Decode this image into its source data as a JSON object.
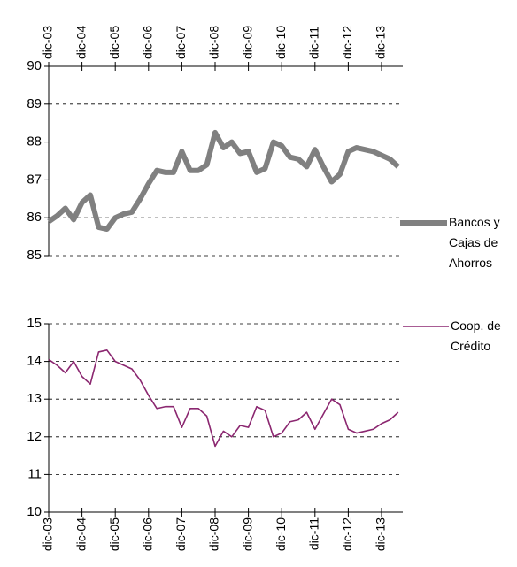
{
  "chart_data": [
    {
      "type": "line",
      "categories": [
        "dic-03",
        null,
        null,
        null,
        "dic-04",
        null,
        null,
        null,
        "dic-05",
        null,
        null,
        null,
        "dic-06",
        null,
        null,
        null,
        "dic-07",
        null,
        null,
        null,
        "dic-08",
        null,
        null,
        null,
        "dic-09",
        null,
        null,
        null,
        "dic-10",
        null,
        null,
        null,
        "dic-11",
        null,
        null,
        null,
        "dic-12",
        null,
        null,
        null,
        "dic-13",
        null,
        null
      ],
      "series": [
        {
          "name": "Bancos y Cajas de Ahorros",
          "color": "#808080",
          "values": [
            85.9,
            86.05,
            86.25,
            85.95,
            86.4,
            86.6,
            85.75,
            85.7,
            86.0,
            86.1,
            86.15,
            86.5,
            86.9,
            87.25,
            87.2,
            87.2,
            87.75,
            87.25,
            87.25,
            87.4,
            88.25,
            87.85,
            88.0,
            87.7,
            87.75,
            87.2,
            87.3,
            88.0,
            87.9,
            87.6,
            87.55,
            87.35,
            87.8,
            87.35,
            86.95,
            87.15,
            87.75,
            87.85,
            87.8,
            87.75,
            87.65,
            87.55,
            87.35
          ]
        }
      ],
      "ylim": [
        85,
        90
      ],
      "yticks": [
        85,
        86,
        87,
        88,
        89,
        90
      ],
      "grid": true
    },
    {
      "type": "line",
      "categories": [
        "dic-03",
        null,
        null,
        null,
        "dic-04",
        null,
        null,
        null,
        "dic-05",
        null,
        null,
        null,
        "dic-06",
        null,
        null,
        null,
        "dic-07",
        null,
        null,
        null,
        "dic-08",
        null,
        null,
        null,
        "dic-09",
        null,
        null,
        null,
        "dic-10",
        null,
        null,
        null,
        "dic-11",
        null,
        null,
        null,
        "dic-12",
        null,
        null,
        null,
        "dic-13",
        null,
        null
      ],
      "series": [
        {
          "name": "Coop. de Crédito",
          "color": "#8b2770",
          "values": [
            14.05,
            13.9,
            13.7,
            14.0,
            13.6,
            13.4,
            14.25,
            14.3,
            14.0,
            13.9,
            13.8,
            13.5,
            13.1,
            12.75,
            12.8,
            12.8,
            12.25,
            12.75,
            12.75,
            12.55,
            11.75,
            12.15,
            12.0,
            12.3,
            12.25,
            12.8,
            12.7,
            12.0,
            12.1,
            12.4,
            12.45,
            12.65,
            12.2,
            12.6,
            13.0,
            12.85,
            12.2,
            12.1,
            12.15,
            12.2,
            12.35,
            12.45,
            12.65
          ]
        }
      ],
      "ylim": [
        10,
        15
      ],
      "yticks": [
        10,
        11,
        12,
        13,
        14,
        15
      ],
      "grid": true
    }
  ]
}
